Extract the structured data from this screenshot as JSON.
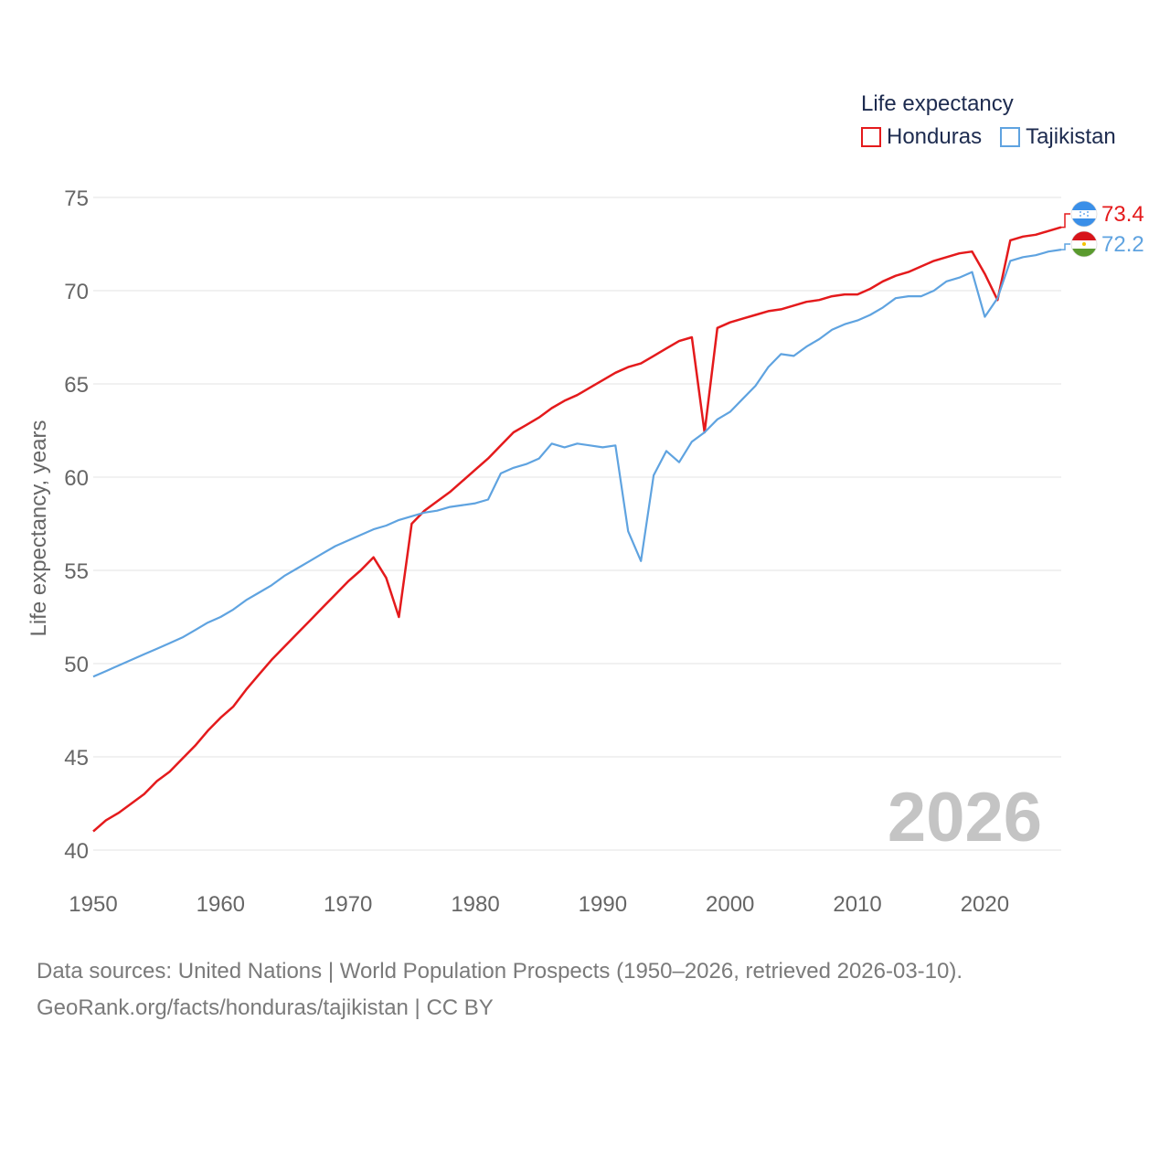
{
  "chart_data": {
    "type": "line",
    "ylabel": "Life expectancy, years",
    "xlabel": "",
    "ylim": [
      40,
      76
    ],
    "xlim": [
      1950,
      2026
    ],
    "yticks": [
      40,
      45,
      50,
      55,
      60,
      65,
      70,
      75
    ],
    "xticks": [
      1950,
      1960,
      1970,
      1980,
      1990,
      2000,
      2010,
      2020
    ],
    "watermark_year": "2026",
    "legend": {
      "title": "Life expectancy",
      "position": "top-right",
      "entries": [
        "Honduras",
        "Tajikistan"
      ]
    },
    "series": [
      {
        "name": "Honduras",
        "color": "#e41a1c",
        "end_label": "73.4",
        "flag": "honduras-flag",
        "x": [
          1950,
          1951,
          1952,
          1953,
          1954,
          1955,
          1956,
          1957,
          1958,
          1959,
          1960,
          1961,
          1962,
          1963,
          1964,
          1965,
          1966,
          1967,
          1968,
          1969,
          1970,
          1971,
          1972,
          1973,
          1974,
          1975,
          1976,
          1977,
          1978,
          1979,
          1980,
          1981,
          1982,
          1983,
          1984,
          1985,
          1986,
          1987,
          1988,
          1989,
          1990,
          1991,
          1992,
          1993,
          1994,
          1995,
          1996,
          1997,
          1998,
          1999,
          2000,
          2001,
          2002,
          2003,
          2004,
          2005,
          2006,
          2007,
          2008,
          2009,
          2010,
          2011,
          2012,
          2013,
          2014,
          2015,
          2016,
          2017,
          2018,
          2019,
          2020,
          2021,
          2022,
          2023,
          2024,
          2025,
          2026
        ],
        "values": [
          41.0,
          41.6,
          42.0,
          42.5,
          43.0,
          43.7,
          44.2,
          44.9,
          45.6,
          46.4,
          47.1,
          47.7,
          48.6,
          49.4,
          50.2,
          50.9,
          51.6,
          52.3,
          53.0,
          53.7,
          54.4,
          55.0,
          55.7,
          54.6,
          52.5,
          57.5,
          58.2,
          58.7,
          59.2,
          59.8,
          60.4,
          61.0,
          61.7,
          62.4,
          62.8,
          63.2,
          63.7,
          64.1,
          64.4,
          64.8,
          65.2,
          65.6,
          65.9,
          66.1,
          66.5,
          66.9,
          67.3,
          67.5,
          62.4,
          68.0,
          68.3,
          68.5,
          68.7,
          68.9,
          69.0,
          69.2,
          69.4,
          69.5,
          69.7,
          69.8,
          69.8,
          70.1,
          70.5,
          70.8,
          71.0,
          71.3,
          71.6,
          71.8,
          72.0,
          72.1,
          70.9,
          69.5,
          72.7,
          72.9,
          73.0,
          73.2,
          73.4
        ]
      },
      {
        "name": "Tajikistan",
        "color": "#5fa3e0",
        "end_label": "72.2",
        "flag": "tajikistan-flag",
        "x": [
          1950,
          1951,
          1952,
          1953,
          1954,
          1955,
          1956,
          1957,
          1958,
          1959,
          1960,
          1961,
          1962,
          1963,
          1964,
          1965,
          1966,
          1967,
          1968,
          1969,
          1970,
          1971,
          1972,
          1973,
          1974,
          1975,
          1976,
          1977,
          1978,
          1979,
          1980,
          1981,
          1982,
          1983,
          1984,
          1985,
          1986,
          1987,
          1988,
          1989,
          1990,
          1991,
          1992,
          1993,
          1994,
          1995,
          1996,
          1997,
          1998,
          1999,
          2000,
          2001,
          2002,
          2003,
          2004,
          2005,
          2006,
          2007,
          2008,
          2009,
          2010,
          2011,
          2012,
          2013,
          2014,
          2015,
          2016,
          2017,
          2018,
          2019,
          2020,
          2021,
          2022,
          2023,
          2024,
          2025,
          2026
        ],
        "values": [
          49.3,
          49.6,
          49.9,
          50.2,
          50.5,
          50.8,
          51.1,
          51.4,
          51.8,
          52.2,
          52.5,
          52.9,
          53.4,
          53.8,
          54.2,
          54.7,
          55.1,
          55.5,
          55.9,
          56.3,
          56.6,
          56.9,
          57.2,
          57.4,
          57.7,
          57.9,
          58.1,
          58.2,
          58.4,
          58.5,
          58.6,
          58.8,
          60.2,
          60.5,
          60.7,
          61.0,
          61.8,
          61.6,
          61.8,
          61.7,
          61.6,
          61.7,
          57.1,
          55.5,
          60.1,
          61.4,
          60.8,
          61.9,
          62.4,
          63.1,
          63.5,
          64.2,
          64.9,
          65.9,
          66.6,
          66.5,
          67.0,
          67.4,
          67.9,
          68.2,
          68.4,
          68.7,
          69.1,
          69.6,
          69.7,
          69.7,
          70.0,
          70.5,
          70.7,
          71.0,
          68.6,
          69.6,
          71.6,
          71.8,
          71.9,
          72.1,
          72.2
        ]
      }
    ]
  },
  "source": {
    "line1": "Data sources: United Nations | World Population Prospects (1950–2026, retrieved 2026-03-10).",
    "line2": "GeoRank.org/facts/honduras/tajikistan | CC BY"
  }
}
